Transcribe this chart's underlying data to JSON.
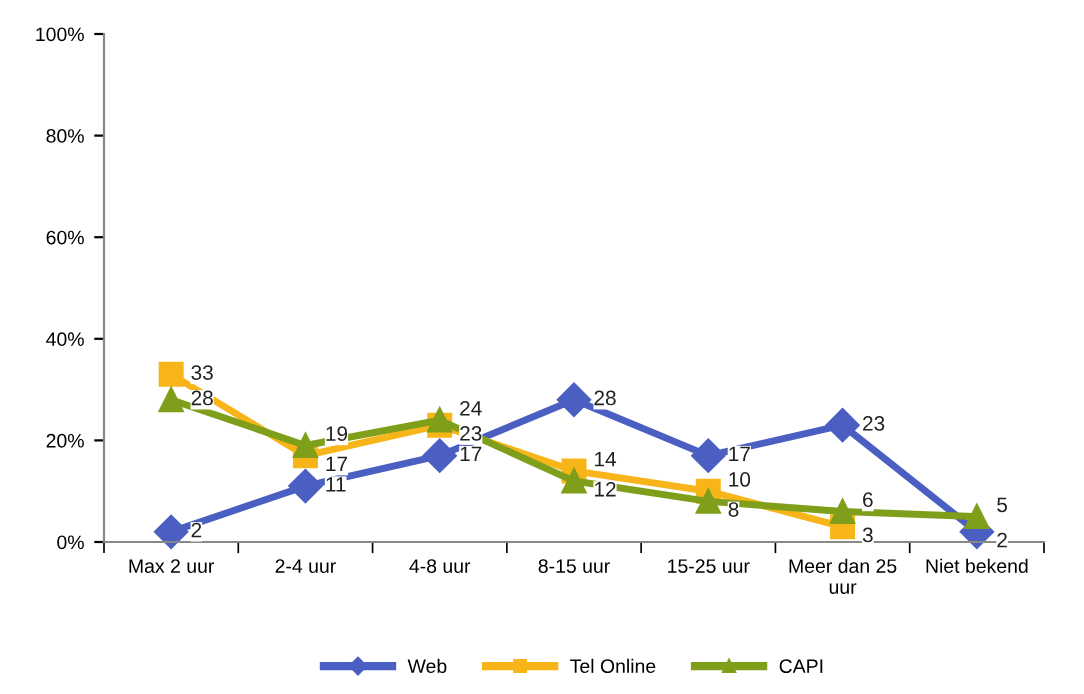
{
  "chart_data": {
    "type": "line",
    "categories": [
      "Max 2 uur",
      "2-4 uur",
      "4-8 uur",
      "8-15 uur",
      "15-25 uur",
      "Meer dan 25\nuur",
      "Niet bekend"
    ],
    "series": [
      {
        "name": "Web",
        "color": "#4a5fc1",
        "marker": "diamond",
        "values": [
          2,
          11,
          17,
          28,
          17,
          23,
          2
        ]
      },
      {
        "name": "Tel Online",
        "color": "#f7b519",
        "marker": "square",
        "values": [
          33,
          17,
          23,
          14,
          10,
          3,
          null
        ]
      },
      {
        "name": "CAPI",
        "color": "#7f9f1a",
        "marker": "triangle",
        "values": [
          28,
          19,
          24,
          12,
          8,
          6,
          5
        ]
      }
    ],
    "ylim": [
      0,
      100
    ],
    "yticks": [
      {
        "value": 0,
        "label": "0%"
      },
      {
        "value": 20,
        "label": "20%"
      },
      {
        "value": 40,
        "label": "40%"
      },
      {
        "value": 60,
        "label": "60%"
      },
      {
        "value": 80,
        "label": "80%"
      },
      {
        "value": 100,
        "label": "100%"
      }
    ],
    "data_labels": true,
    "grid": false,
    "legend": "bottom",
    "line_style": "solid"
  }
}
